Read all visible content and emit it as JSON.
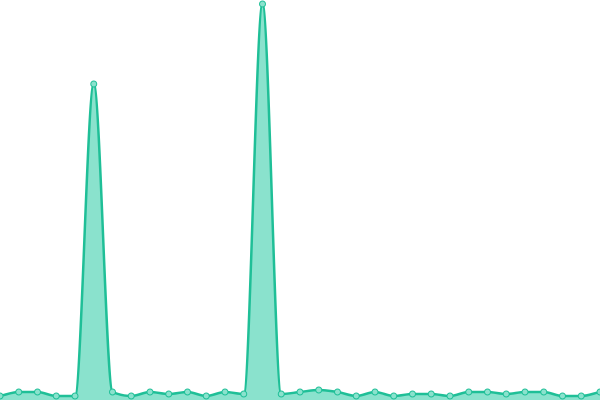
{
  "chart_data": {
    "type": "area",
    "values": [
      1,
      2,
      2,
      1,
      1,
      79,
      2,
      1,
      2,
      1.5,
      2,
      1,
      2,
      1.5,
      99,
      1.5,
      2,
      2.5,
      2,
      1,
      2,
      1,
      1.5,
      1.5,
      1,
      2,
      2,
      1.5,
      2,
      2,
      1,
      1,
      2
    ],
    "color": "#1fbf97",
    "fill": "#8ae2cd",
    "ylim": [
      0,
      100
    ]
  }
}
